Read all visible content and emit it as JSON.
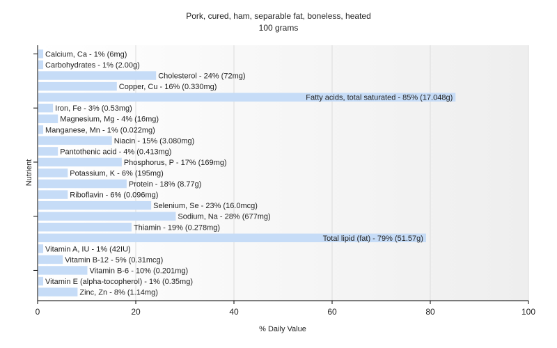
{
  "chart_data": {
    "type": "bar",
    "orientation": "horizontal",
    "title": "Pork, cured, ham, separable fat, boneless, heated",
    "subtitle": "100 grams",
    "xlabel": "% Daily Value",
    "ylabel": "Nutrient",
    "xlim": [
      0,
      100
    ],
    "xticks": [
      0,
      20,
      40,
      60,
      80,
      100
    ],
    "grid": true,
    "bar_color": "#c6dcf7",
    "categories": [
      "Calcium, Ca",
      "Carbohydrates",
      "Cholesterol",
      "Copper, Cu",
      "Fatty acids, total saturated",
      "Iron, Fe",
      "Magnesium, Mg",
      "Manganese, Mn",
      "Niacin",
      "Pantothenic acid",
      "Phosphorus, P",
      "Potassium, K",
      "Protein",
      "Riboflavin",
      "Selenium, Se",
      "Sodium, Na",
      "Thiamin",
      "Total lipid (fat)",
      "Vitamin A, IU",
      "Vitamin B-12",
      "Vitamin B-6",
      "Vitamin E (alpha-tocopherol)",
      "Zinc, Zn"
    ],
    "values": [
      1,
      1,
      24,
      16,
      85,
      3,
      4,
      1,
      15,
      4,
      17,
      6,
      18,
      6,
      23,
      28,
      19,
      79,
      1,
      5,
      10,
      1,
      8
    ],
    "labels": [
      "Calcium, Ca - 1% (6mg)",
      "Carbohydrates - 1% (2.00g)",
      "Cholesterol - 24% (72mg)",
      "Copper, Cu - 16% (0.330mg)",
      "Fatty acids, total saturated - 85% (17.048g)",
      "Iron, Fe - 3% (0.53mg)",
      "Magnesium, Mg - 4% (16mg)",
      "Manganese, Mn - 1% (0.022mg)",
      "Niacin - 15% (3.080mg)",
      "Pantothenic acid - 4% (0.413mg)",
      "Phosphorus, P - 17% (169mg)",
      "Potassium, K - 6% (195mg)",
      "Protein - 18% (8.77g)",
      "Riboflavin - 6% (0.096mg)",
      "Selenium, Se - 23% (16.0mcg)",
      "Sodium, Na - 28% (677mg)",
      "Thiamin - 19% (0.278mg)",
      "Total lipid (fat) - 79% (51.57g)",
      "Vitamin A, IU - 1% (42IU)",
      "Vitamin B-12 - 5% (0.31mcg)",
      "Vitamin B-6 - 10% (0.201mg)",
      "Vitamin E (alpha-tocopherol) - 1% (0.35mg)",
      "Zinc, Zn - 8% (1.14mg)"
    ]
  }
}
